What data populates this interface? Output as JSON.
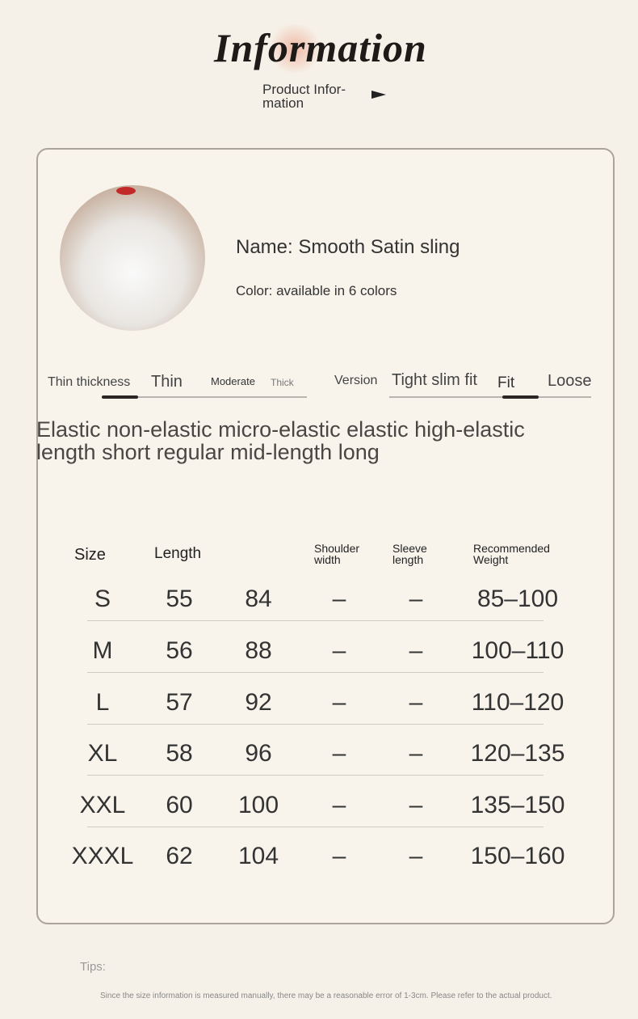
{
  "header": {
    "title": "Information",
    "subtitle": "Product Infor-\nmation",
    "arrow_icon": "triangle-right-icon"
  },
  "product": {
    "name": "Name: Smooth Satin sling",
    "color": "Color: available in 6 colors"
  },
  "thickness": {
    "label": "Thin thickness",
    "options": [
      "Thin",
      "Moderate",
      "Thick"
    ],
    "selected": "Thin"
  },
  "version": {
    "label": "Version",
    "options": [
      "Tight slim fit",
      "Fit",
      "Loose"
    ],
    "selected": "Fit"
  },
  "elastic_text": "Elastic non-elastic micro-elastic elastic high-elastic",
  "length_text": "length short regular mid-length long",
  "size_table": {
    "headers": [
      "Size",
      "Length",
      "",
      "Shoulder width",
      "Sleeve length",
      "Recommended Weight"
    ],
    "rows": [
      [
        "S",
        "55",
        "84",
        "–",
        "–",
        "85–100"
      ],
      [
        "M",
        "56",
        "88",
        "–",
        "–",
        "100–110"
      ],
      [
        "L",
        "57",
        "92",
        "–",
        "–",
        "110–120"
      ],
      [
        "XL",
        "58",
        "96",
        "–",
        "–",
        "120–135"
      ],
      [
        "XXL",
        "60",
        "100",
        "–",
        "–",
        "135–150"
      ],
      [
        "XXXL",
        "62",
        "104",
        "–",
        "–",
        "150–160"
      ]
    ]
  },
  "tips": {
    "label": "Tips:",
    "note": "Since the size information is measured manually, there may be a reasonable error of 1-3cm. Please refer to the actual product."
  },
  "colors": {
    "background": "#f6f1e8",
    "border": "#aaa49c",
    "text": "#333333"
  }
}
